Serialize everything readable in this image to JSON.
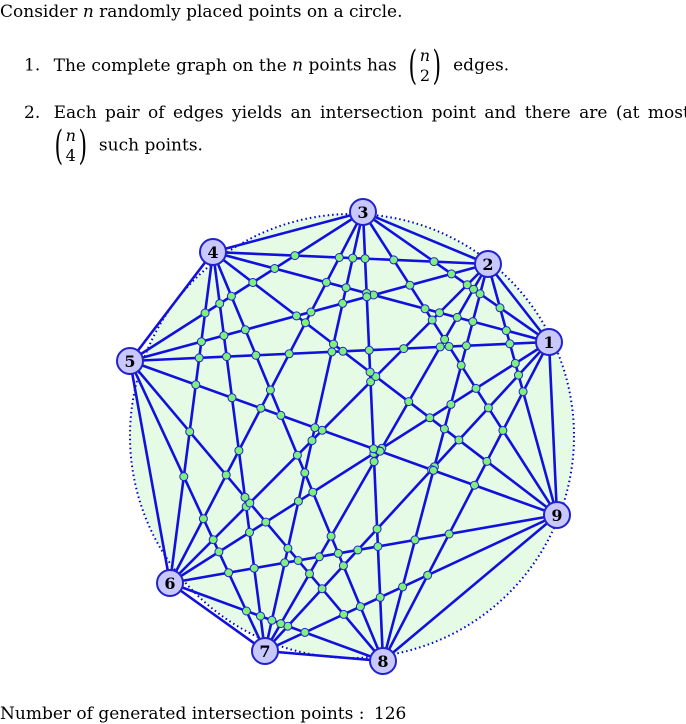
{
  "intro": {
    "text_before": "Consider ",
    "var": "n",
    "text_after": " randomly placed points on a circle."
  },
  "items": [
    {
      "number": "1.",
      "before": "The complete graph on the ",
      "var": "n",
      "middle": " points has ",
      "binom_top": "n",
      "binom_bottom": "2",
      "after": " edges."
    },
    {
      "number": "2.",
      "line1": "Each pair of edges yields an intersection point and there are (at most)",
      "binom_top": "n",
      "binom_bottom": "4",
      "after": " such points."
    }
  ],
  "footer": {
    "label": "Number of generated intersection points :",
    "count": "126"
  },
  "diagram": {
    "vertex_labels": [
      "1",
      "2",
      "3",
      "4",
      "5",
      "6",
      "7",
      "8",
      "9"
    ],
    "colors": {
      "edge": "#1111dd",
      "circle_fill": "#e6fbe6",
      "circle_stroke": "#0000cc",
      "vertex_fill": "#c8c8ff",
      "vertex_stroke": "#2222cc",
      "point_fill": "#7ef07e",
      "point_stroke": "#2222cc"
    }
  }
}
